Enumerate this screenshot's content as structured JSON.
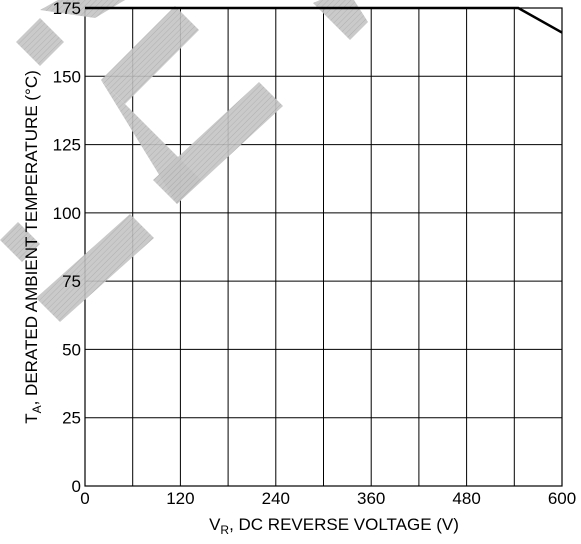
{
  "chart_data": {
    "type": "line",
    "title": "",
    "xlabel": {
      "main": "V",
      "sub": "R",
      "rest": ", DC REVERSE VOLTAGE (V)"
    },
    "ylabel": {
      "main": "T",
      "sub": "A",
      "rest": ", DERATED AMBIENT TEMPERATURE (°C)"
    },
    "xlim": [
      0,
      600
    ],
    "ylim": [
      0,
      175
    ],
    "xticks": [
      0,
      120,
      240,
      360,
      480,
      600
    ],
    "yticks": [
      0,
      25,
      50,
      75,
      100,
      125,
      150,
      175
    ],
    "grid": true,
    "grid_x_step": 60,
    "grid_y_step": 25,
    "series": [
      {
        "x": [
          0,
          545,
          600
        ],
        "y": [
          175,
          175,
          166
        ]
      }
    ],
    "colors": {
      "line": "#000000",
      "grid": "#000000",
      "watermark": "#b8b8b8"
    }
  },
  "watermark": {
    "description": "diagonal hatched 'EOL'-style stamp shapes"
  }
}
